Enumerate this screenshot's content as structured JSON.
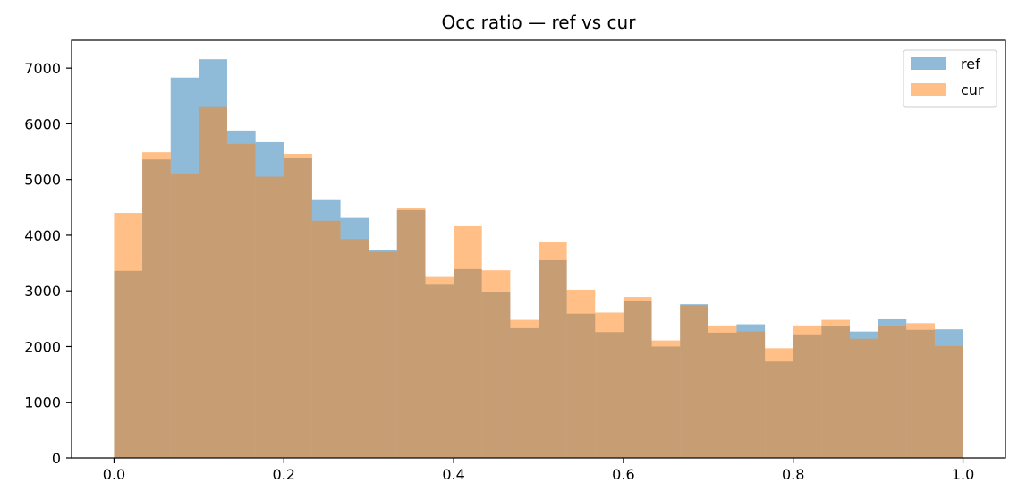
{
  "chart_data": {
    "type": "histogram",
    "title": "Occ ratio — ref vs cur",
    "xlabel": "",
    "ylabel": "",
    "xlim": [
      -0.05,
      1.05
    ],
    "ylim": [
      0,
      7500
    ],
    "x_ticks": [
      "0.0",
      "0.2",
      "0.4",
      "0.6",
      "0.8",
      "1.0"
    ],
    "y_ticks": [
      "0",
      "1000",
      "2000",
      "3000",
      "4000",
      "5000",
      "6000",
      "7000"
    ],
    "bin_edges": [
      0.0,
      0.0333,
      0.0667,
      0.1,
      0.1333,
      0.1667,
      0.2,
      0.2333,
      0.2667,
      0.3,
      0.3333,
      0.3667,
      0.4,
      0.4333,
      0.4667,
      0.5,
      0.5333,
      0.5667,
      0.6,
      0.6333,
      0.6667,
      0.7,
      0.7333,
      0.7667,
      0.8,
      0.8333,
      0.8667,
      0.9,
      0.9333,
      0.9667,
      1.0
    ],
    "series": [
      {
        "name": "ref",
        "color": "#1f77b4",
        "alpha": 0.5,
        "values": [
          3360,
          5360,
          6830,
          7160,
          5880,
          5670,
          5380,
          4630,
          4310,
          3730,
          4450,
          3110,
          3390,
          2980,
          2330,
          3550,
          2590,
          2260,
          2820,
          2000,
          2760,
          2250,
          2400,
          1730,
          2220,
          2360,
          2270,
          2490,
          2300,
          2310
        ]
      },
      {
        "name": "cur",
        "color": "#ff7f0e",
        "alpha": 0.5,
        "values": [
          4400,
          5490,
          5110,
          6300,
          5640,
          5050,
          5460,
          4260,
          3930,
          3700,
          4490,
          3250,
          4160,
          3370,
          2480,
          3870,
          3020,
          2610,
          2890,
          2110,
          2740,
          2380,
          2270,
          1970,
          2380,
          2480,
          2140,
          2370,
          2420,
          2010
        ]
      }
    ],
    "grid": false,
    "legend_position": "top-right"
  }
}
